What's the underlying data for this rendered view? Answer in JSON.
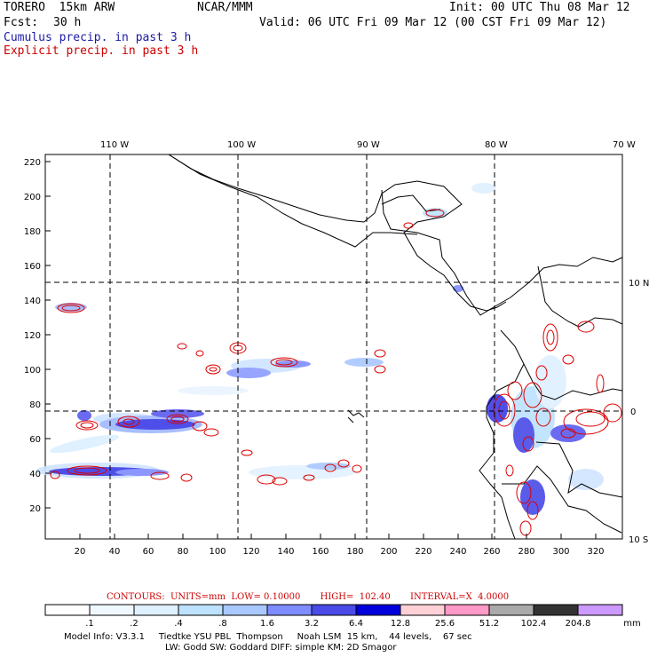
{
  "header": {
    "model": "TORERO  15km ARW",
    "center": "NCAR/MMM",
    "init": "Init: 00 UTC Thu 08 Mar 12",
    "fcst_label": "Fcst:",
    "fcst_value": "30 h",
    "valid": "Valid: 06 UTC Fri 09 Mar 12 (00 CST Fri 09 Mar 12)",
    "legend_cumulus": "Cumulus precip. in past 3 h",
    "legend_explicit": "Explicit precip. in past 3 h"
  },
  "map": {
    "lon_labels": [
      "110 W",
      "100 W",
      "90 W",
      "80 W",
      "70 W"
    ],
    "lat_labels": [
      "10 N",
      "0",
      "10 S"
    ],
    "x_ticks": [
      "20",
      "40",
      "60",
      "80",
      "100",
      "120",
      "140",
      "160",
      "180",
      "200",
      "220",
      "240",
      "260",
      "280",
      "300",
      "320"
    ],
    "y_ticks": [
      "20",
      "40",
      "60",
      "80",
      "100",
      "120",
      "140",
      "160",
      "180",
      "200",
      "220"
    ],
    "colors": {
      "cumulus": "#3333cc",
      "explicit": "#dd0000",
      "coast": "#000000"
    }
  },
  "contour_info": "CONTOURS:  UNITS=mm  LOW= 0.10000       HIGH=  102.40       INTERVAL=X  4.0000",
  "colorbar": {
    "labels": [
      ".1",
      ".2",
      ".4",
      ".8",
      "1.6",
      "3.2",
      "6.4",
      "12.8",
      "25.6",
      "51.2",
      "102.4",
      "204.8"
    ],
    "unit": "mm",
    "colors": [
      "#ffffff",
      "#f0f8ff",
      "#dff0ff",
      "#bde2ff",
      "#a9c8ff",
      "#7f8cff",
      "#4a4ae8",
      "#0000dd",
      "#ffd0d6",
      "#ff99c8",
      "#aaaaaa",
      "#333333",
      "#cc99ff"
    ]
  },
  "model_info": {
    "line1": "Model Info: V3.3.1     Tiedtke YSU PBL  Thompson     Noah LSM  15 km,    44 levels,    67 sec",
    "line2": "LW: Godd SW: Goddard DIFF: simple KM: 2D Smagor"
  }
}
